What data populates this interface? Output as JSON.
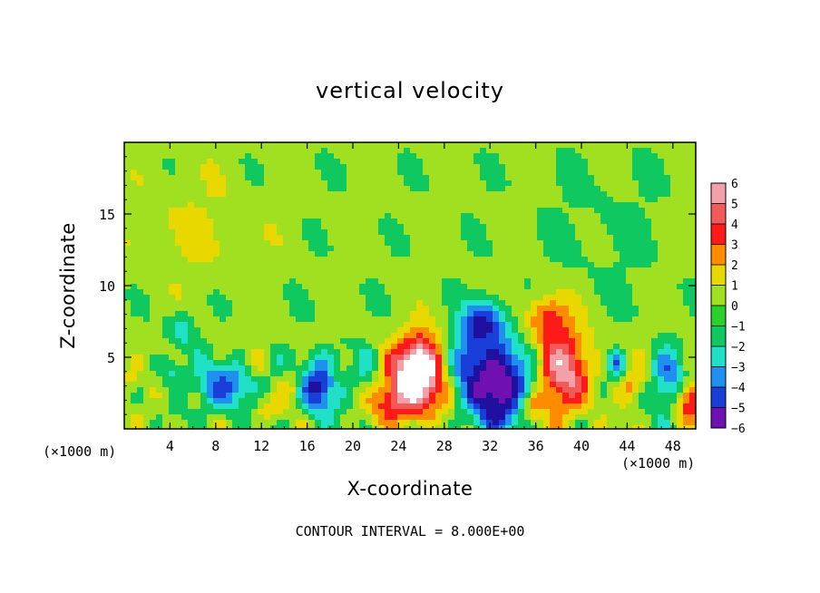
{
  "chart_data": {
    "type": "heatmap",
    "title": "vertical velocity",
    "xlabel": "X-coordinate",
    "ylabel": "Z-coordinate",
    "x_unit_left": "(×1000 m)",
    "x_unit_right": "(×1000 m)",
    "note": "CONTOUR INTERVAL = 8.000E+00",
    "xlim": [
      0,
      50
    ],
    "ylim": [
      0,
      20
    ],
    "x_ticks": [
      "4",
      "8",
      "12",
      "16",
      "20",
      "24",
      "28",
      "32",
      "36",
      "40",
      "44",
      "48"
    ],
    "y_ticks": [
      "5",
      "10",
      "15"
    ],
    "colorbar": {
      "labels": [
        "6",
        "5",
        "4",
        "3",
        "2",
        "1",
        "0",
        "−1",
        "−2",
        "−3",
        "−4",
        "−5",
        "−6"
      ],
      "min": -6,
      "max": 6
    },
    "background_value": 0.3,
    "features": [
      {
        "x": 25.5,
        "z": 3.2,
        "w": 2.5,
        "h": 2.4,
        "v": 6.5
      },
      {
        "x": 26.0,
        "z": 5.0,
        "w": 1.8,
        "h": 2.0,
        "v": 3.5
      },
      {
        "x": 23.0,
        "z": 1.8,
        "w": 1.5,
        "h": 1.2,
        "v": 2.0
      },
      {
        "x": 32.5,
        "z": 3.0,
        "w": 2.8,
        "h": 3.0,
        "v": -6.5
      },
      {
        "x": 31.5,
        "z": 7.5,
        "w": 1.8,
        "h": 1.5,
        "v": -4.0
      },
      {
        "x": 30.0,
        "z": 5.0,
        "w": 1.5,
        "h": 2.0,
        "v": -2.5
      },
      {
        "x": 38.5,
        "z": 4.0,
        "w": 2.3,
        "h": 3.0,
        "v": 5.0
      },
      {
        "x": 37.0,
        "z": 7.8,
        "w": 1.8,
        "h": 1.5,
        "v": 3.0
      },
      {
        "x": 35.5,
        "z": 1.5,
        "w": 1.2,
        "h": 1.0,
        "v": 2.0
      },
      {
        "x": 9.0,
        "z": 3.0,
        "w": 2.5,
        "h": 1.8,
        "v": -3.5
      },
      {
        "x": 17.0,
        "z": 3.0,
        "w": 1.5,
        "h": 2.0,
        "v": -5.0
      },
      {
        "x": 5.0,
        "z": 7.0,
        "w": 1.2,
        "h": 1.2,
        "v": -2.0
      },
      {
        "x": 4.0,
        "z": 4.0,
        "w": 1.0,
        "h": 1.0,
        "v": -2.0
      },
      {
        "x": 12.5,
        "z": 1.5,
        "w": 1.2,
        "h": 0.9,
        "v": 2.0
      },
      {
        "x": 14.5,
        "z": 3.0,
        "w": 1.0,
        "h": 1.0,
        "v": 1.5
      },
      {
        "x": 49.5,
        "z": 2.0,
        "w": 1.2,
        "h": 1.5,
        "v": 4.0
      },
      {
        "x": 47.5,
        "z": 3.5,
        "w": 1.5,
        "h": 2.0,
        "v": -3.0
      },
      {
        "x": 43.0,
        "z": 4.5,
        "w": 0.8,
        "h": 0.8,
        "v": -3.0
      },
      {
        "x": 44.5,
        "z": 3.0,
        "w": 1.0,
        "h": 1.0,
        "v": 2.0
      },
      {
        "x": 0.5,
        "z": 3.5,
        "w": 1.0,
        "h": 1.0,
        "v": 1.5
      },
      {
        "x": 11.5,
        "z": 4.8,
        "w": 1.0,
        "h": 0.8,
        "v": 1.5
      },
      {
        "x": 21.0,
        "z": 4.5,
        "w": 1.5,
        "h": 1.5,
        "v": -1.0
      },
      {
        "x": 6.0,
        "z": 14.0,
        "w": 6.0,
        "h": 4.0,
        "v": 0.8
      },
      {
        "x": 42.0,
        "z": 14.0,
        "w": 5.0,
        "h": 5.0,
        "v": -0.5
      }
    ]
  }
}
